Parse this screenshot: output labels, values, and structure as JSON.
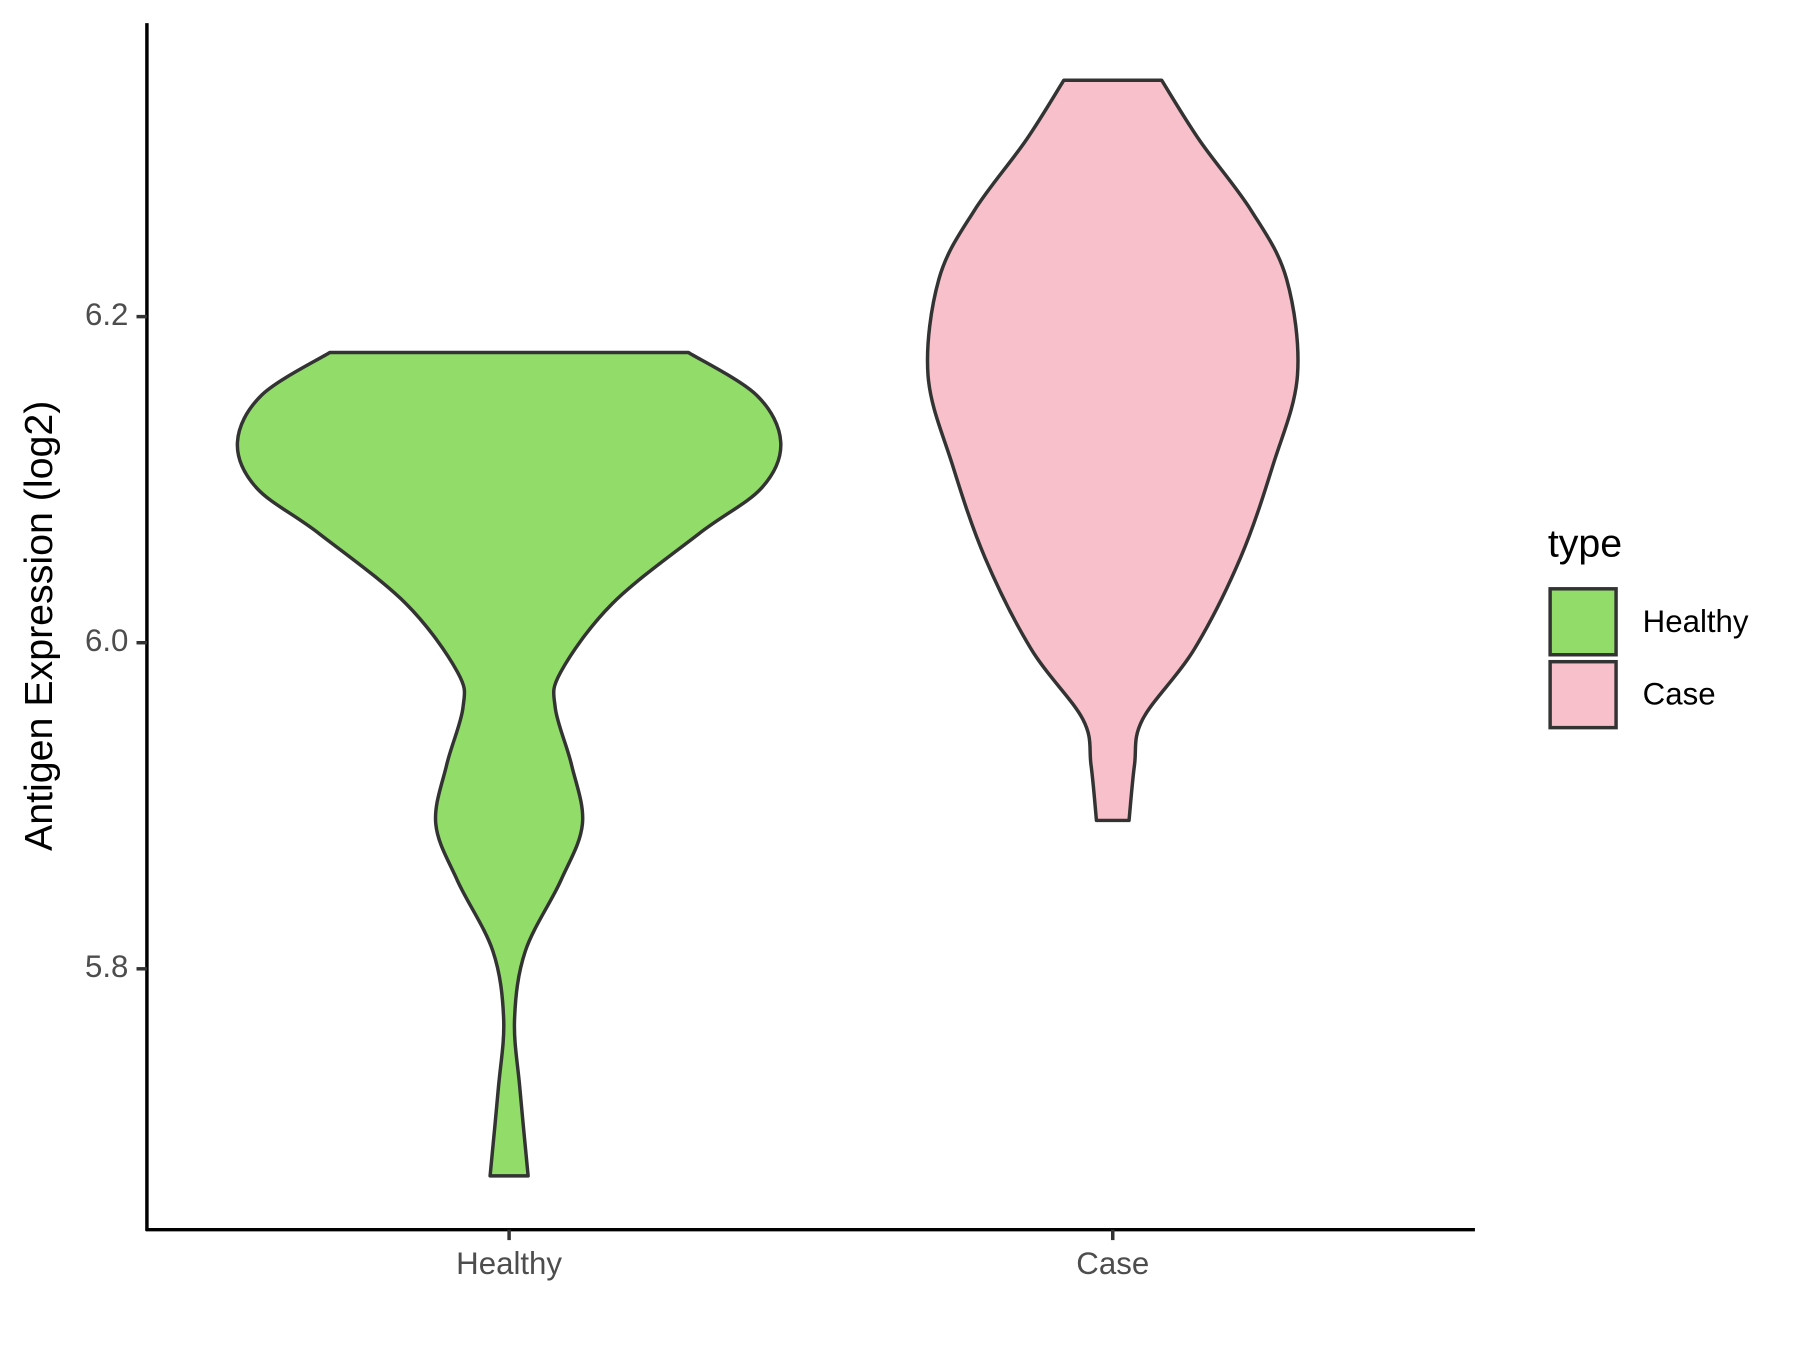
{
  "chart_data": {
    "type": "violin",
    "y_label": "Antigen Expression (log2)",
    "categories": [
      "Healthy",
      "Case"
    ],
    "legend_title": "type",
    "legend_position": "right",
    "series": [
      {
        "name": "Healthy",
        "color": "#92dc6a",
        "y": [
          6.178,
          6.152,
          6.123,
          6.095,
          6.067,
          6.024,
          5.982,
          5.96,
          5.925,
          5.889,
          5.854,
          5.811,
          5.769,
          5.726,
          5.673
        ],
        "width": [
          0.66,
          0.91,
          1.0,
          0.93,
          0.7,
          0.38,
          0.19,
          0.17,
          0.23,
          0.27,
          0.19,
          0.06,
          0.02,
          0.04,
          0.07
        ]
      },
      {
        "name": "Case",
        "color": "#f7c0cb",
        "y": [
          6.345,
          6.308,
          6.265,
          6.223,
          6.164,
          6.109,
          6.052,
          5.996,
          5.953,
          5.925,
          5.891
        ],
        "width": [
          0.18,
          0.32,
          0.51,
          0.64,
          0.68,
          0.59,
          0.47,
          0.3,
          0.11,
          0.08,
          0.06
        ]
      }
    ],
    "ylim": [
      5.64,
      6.38
    ],
    "yticks": [
      5.8,
      {
        "value": 6.0,
        "label": "6.0"
      },
      6.2
    ]
  }
}
